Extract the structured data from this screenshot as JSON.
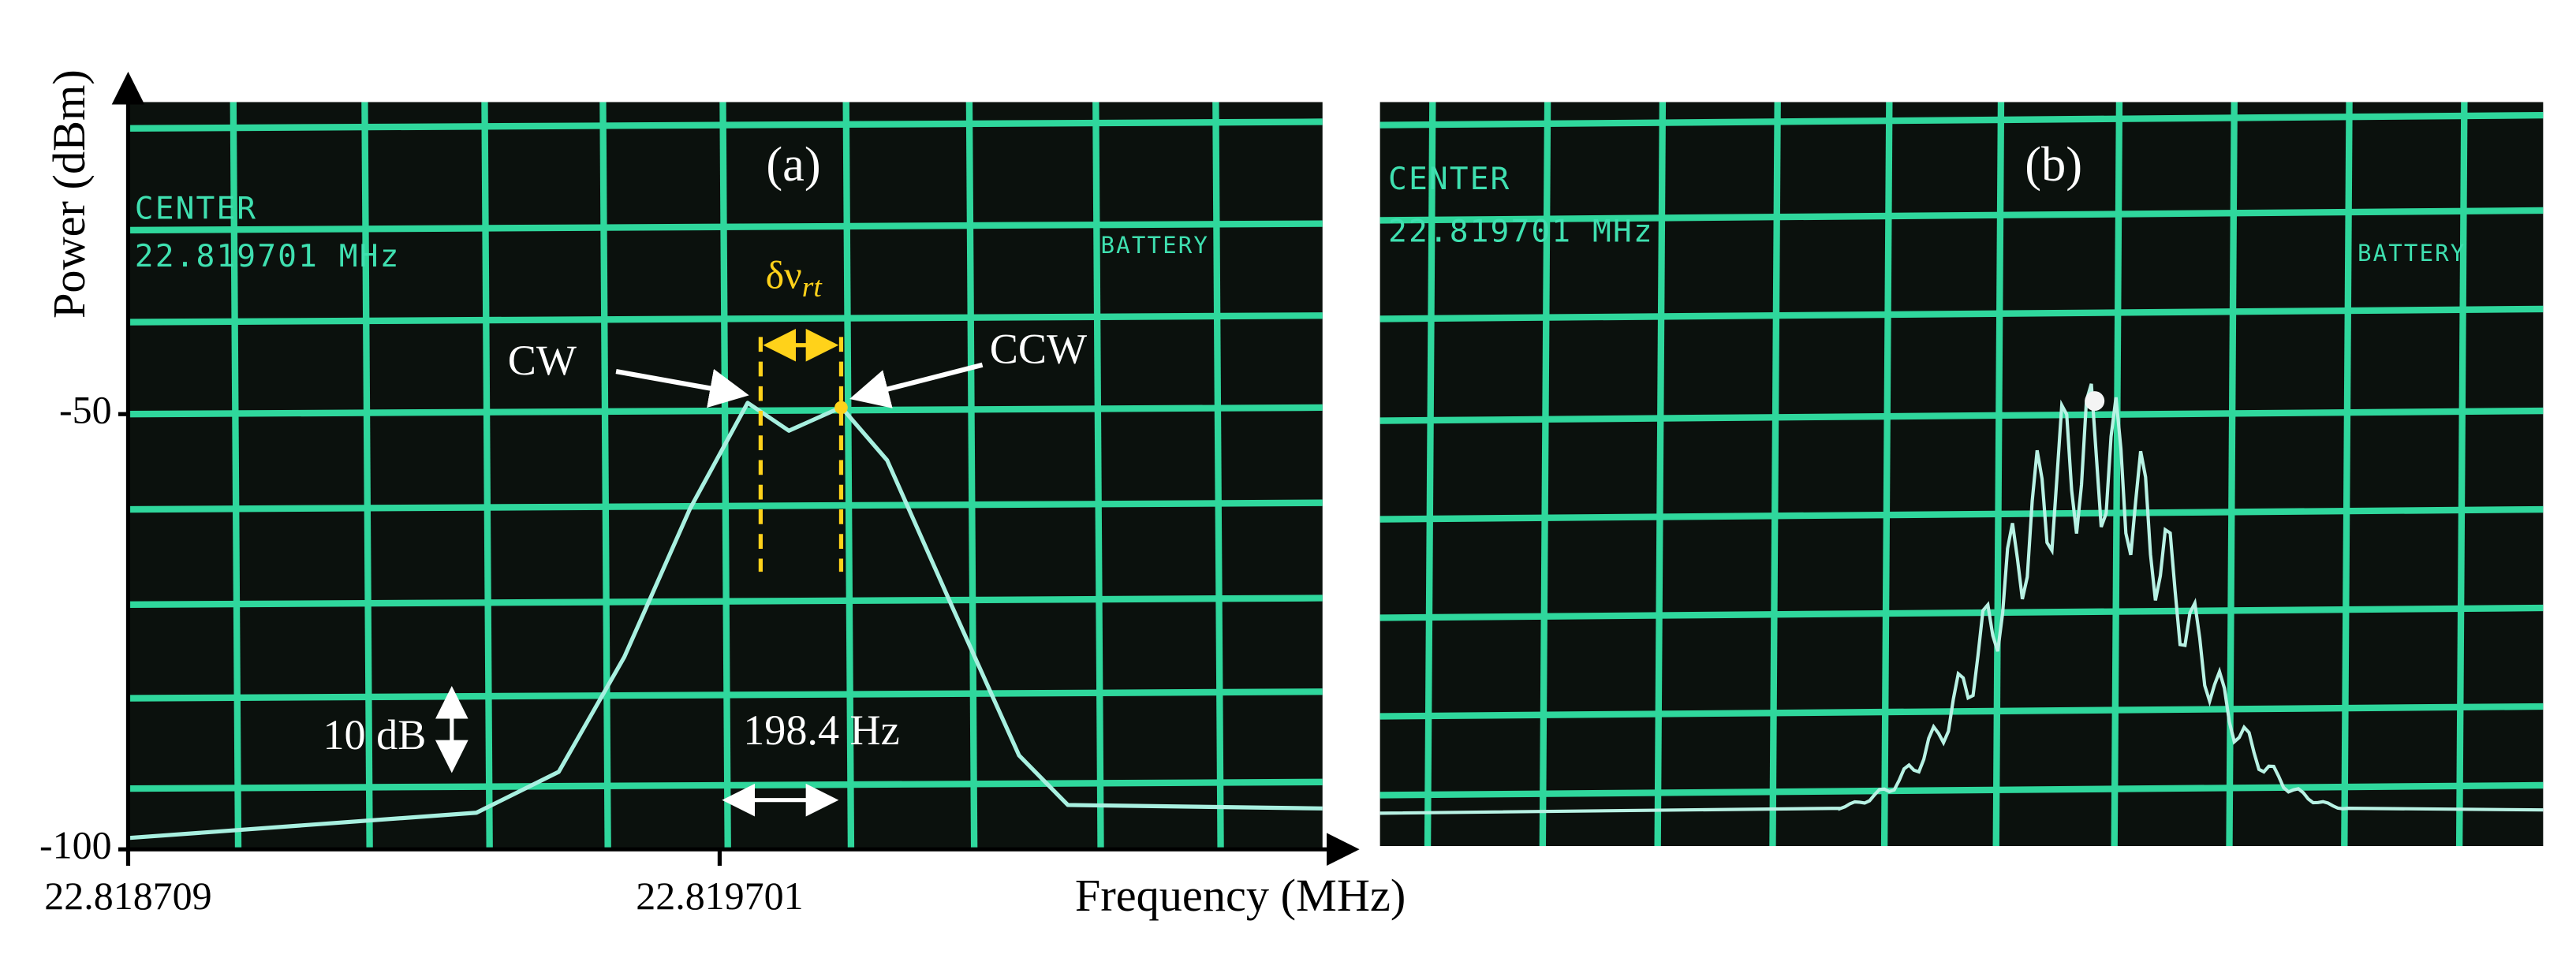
{
  "chart_data": {
    "type": "line",
    "xlabel": "Frequency (MHz)",
    "ylabel": "Power (dBm)",
    "xlim": [
      22.818709,
      22.820712
    ],
    "ylim": [
      -100,
      -14
    ],
    "xticks": [
      22.818709,
      22.819701
    ],
    "yticks": [
      -50,
      -100
    ],
    "x": [
      22.818709,
      22.819293,
      22.819431,
      22.819541,
      22.819651,
      22.819748,
      22.819817,
      22.819905,
      22.819982,
      22.820092,
      22.820203,
      22.820285,
      22.820712
    ],
    "values": [
      -98.7,
      -95.8,
      -91.1,
      -77.9,
      -60.9,
      -48.7,
      -51.9,
      -49.2,
      -55.3,
      -72.3,
      -89.2,
      -94.9,
      -95.3
    ],
    "color": "#a8f0e0",
    "panel_label": "(a)",
    "screen": {
      "center": "CENTER",
      "frequency": "22.819701 MHz",
      "battery": "BATTERY"
    },
    "annotations": {
      "cw": "CW",
      "ccw": "CCW",
      "delta": "δν",
      "delta_sub": "rt",
      "scale_y": "10 dB",
      "scale_x": "198.4 Hz"
    }
  },
  "panel_b": {
    "panel_label": "(b)",
    "screen": {
      "center": "CENTER",
      "frequency": "22.819701 MHz",
      "battery": "BATTERY"
    }
  }
}
